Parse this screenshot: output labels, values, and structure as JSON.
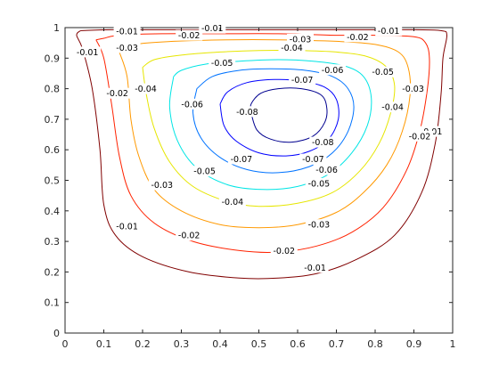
{
  "chart_data": {
    "type": "contour",
    "title": "",
    "xlabel": "",
    "ylabel": "",
    "xlim": [
      0,
      1
    ],
    "ylim": [
      0,
      1
    ],
    "grid": false,
    "x_ticks": [
      "0",
      "0.1",
      "0.2",
      "0.3",
      "0.4",
      "0.5",
      "0.6",
      "0.7",
      "0.8",
      "0.9",
      "1"
    ],
    "y_ticks": [
      "0",
      "0.1",
      "0.2",
      "0.3",
      "0.4",
      "0.5",
      "0.6",
      "0.7",
      "0.8",
      "0.9",
      "1"
    ],
    "levels": [
      {
        "value": -0.01,
        "color": "#800000",
        "curves": [
          [
            [
              0.04,
              0.99
            ],
            [
              0.03,
              0.975
            ],
            [
              0.045,
              0.93
            ],
            [
              0.07,
              0.8
            ],
            [
              0.09,
              0.6
            ],
            [
              0.1,
              0.42
            ],
            [
              0.13,
              0.32
            ],
            [
              0.2,
              0.25
            ],
            [
              0.32,
              0.2
            ],
            [
              0.45,
              0.18
            ],
            [
              0.55,
              0.18
            ],
            [
              0.65,
              0.195
            ],
            [
              0.75,
              0.24
            ],
            [
              0.85,
              0.32
            ],
            [
              0.92,
              0.46
            ],
            [
              0.955,
              0.62
            ],
            [
              0.97,
              0.78
            ],
            [
              0.975,
              0.9
            ],
            [
              0.985,
              0.975
            ],
            [
              0.97,
              0.99
            ],
            [
              0.9,
              0.993
            ],
            [
              0.7,
              0.993
            ],
            [
              0.5,
              0.993
            ],
            [
              0.3,
              0.993
            ],
            [
              0.12,
              0.993
            ],
            [
              0.04,
              0.99
            ]
          ]
        ],
        "labels": [
          {
            "text": "-0.01",
            "x": 0.058,
            "y": 0.92
          },
          {
            "text": "-0.01",
            "x": 0.16,
            "y": 0.988
          },
          {
            "text": "-0.01",
            "x": 0.38,
            "y": 0.998
          },
          {
            "text": "-0.01",
            "x": 0.835,
            "y": 0.99
          },
          {
            "text": "-0.01",
            "x": 0.945,
            "y": 0.66
          },
          {
            "text": "-0.01",
            "x": 0.16,
            "y": 0.35
          },
          {
            "text": "-0.01",
            "x": 0.645,
            "y": 0.215
          }
        ]
      },
      {
        "value": -0.02,
        "color": "#ff2200",
        "curves": [
          [
            [
              0.08,
              0.96
            ],
            [
              0.1,
              0.9
            ],
            [
              0.12,
              0.75
            ],
            [
              0.14,
              0.58
            ],
            [
              0.17,
              0.45
            ],
            [
              0.23,
              0.36
            ],
            [
              0.33,
              0.3
            ],
            [
              0.45,
              0.27
            ],
            [
              0.55,
              0.265
            ],
            [
              0.65,
              0.285
            ],
            [
              0.74,
              0.33
            ],
            [
              0.82,
              0.41
            ],
            [
              0.88,
              0.53
            ],
            [
              0.915,
              0.66
            ],
            [
              0.935,
              0.8
            ],
            [
              0.94,
              0.9
            ],
            [
              0.93,
              0.95
            ],
            [
              0.9,
              0.97
            ],
            [
              0.8,
              0.975
            ],
            [
              0.7,
              0.975
            ],
            [
              0.55,
              0.98
            ],
            [
              0.4,
              0.98
            ],
            [
              0.25,
              0.98
            ],
            [
              0.14,
              0.975
            ],
            [
              0.1,
              0.965
            ],
            [
              0.08,
              0.96
            ]
          ]
        ],
        "labels": [
          {
            "text": "-0.02",
            "x": 0.135,
            "y": 0.785
          },
          {
            "text": "-0.02",
            "x": 0.32,
            "y": 0.975
          },
          {
            "text": "-0.02",
            "x": 0.755,
            "y": 0.97
          },
          {
            "text": "-0.02",
            "x": 0.915,
            "y": 0.645
          },
          {
            "text": "-0.02",
            "x": 0.32,
            "y": 0.32
          },
          {
            "text": "-0.02",
            "x": 0.565,
            "y": 0.27
          }
        ]
      },
      {
        "value": -0.03,
        "color": "#ff9900",
        "curves": [
          [
            [
              0.14,
              0.92
            ],
            [
              0.16,
              0.84
            ],
            [
              0.17,
              0.7
            ],
            [
              0.19,
              0.58
            ],
            [
              0.23,
              0.47
            ],
            [
              0.3,
              0.4
            ],
            [
              0.4,
              0.355
            ],
            [
              0.5,
              0.345
            ],
            [
              0.6,
              0.355
            ],
            [
              0.7,
              0.395
            ],
            [
              0.77,
              0.46
            ],
            [
              0.83,
              0.55
            ],
            [
              0.87,
              0.66
            ],
            [
              0.89,
              0.78
            ],
            [
              0.885,
              0.87
            ],
            [
              0.86,
              0.92
            ],
            [
              0.8,
              0.945
            ],
            [
              0.7,
              0.955
            ],
            [
              0.55,
              0.96
            ],
            [
              0.42,
              0.96
            ],
            [
              0.28,
              0.955
            ],
            [
              0.18,
              0.945
            ],
            [
              0.14,
              0.92
            ]
          ]
        ],
        "labels": [
          {
            "text": "-0.03",
            "x": 0.16,
            "y": 0.935
          },
          {
            "text": "-0.03",
            "x": 0.607,
            "y": 0.962
          },
          {
            "text": "-0.03",
            "x": 0.898,
            "y": 0.8
          },
          {
            "text": "-0.03",
            "x": 0.25,
            "y": 0.485
          },
          {
            "text": "-0.03",
            "x": 0.655,
            "y": 0.355
          }
        ]
      },
      {
        "value": -0.04,
        "color": "#e6e600",
        "curves": [
          [
            [
              0.2,
              0.87
            ],
            [
              0.21,
              0.78
            ],
            [
              0.23,
              0.67
            ],
            [
              0.27,
              0.56
            ],
            [
              0.33,
              0.48
            ],
            [
              0.42,
              0.43
            ],
            [
              0.5,
              0.415
            ],
            [
              0.6,
              0.425
            ],
            [
              0.69,
              0.46
            ],
            [
              0.76,
              0.53
            ],
            [
              0.81,
              0.62
            ],
            [
              0.84,
              0.72
            ],
            [
              0.85,
              0.81
            ],
            [
              0.83,
              0.87
            ],
            [
              0.78,
              0.905
            ],
            [
              0.7,
              0.92
            ],
            [
              0.6,
              0.925
            ],
            [
              0.5,
              0.925
            ],
            [
              0.4,
              0.92
            ],
            [
              0.3,
              0.91
            ],
            [
              0.23,
              0.895
            ],
            [
              0.2,
              0.87
            ]
          ]
        ],
        "labels": [
          {
            "text": "-0.04",
            "x": 0.208,
            "y": 0.8
          },
          {
            "text": "-0.04",
            "x": 0.585,
            "y": 0.935
          },
          {
            "text": "-0.04",
            "x": 0.845,
            "y": 0.74
          },
          {
            "text": "-0.04",
            "x": 0.432,
            "y": 0.43
          }
        ]
      },
      {
        "value": -0.05,
        "color": "#00e5e5",
        "curves": [
          [
            [
              0.28,
              0.84
            ],
            [
              0.27,
              0.74
            ],
            [
              0.29,
              0.63
            ],
            [
              0.34,
              0.54
            ],
            [
              0.42,
              0.485
            ],
            [
              0.51,
              0.47
            ],
            [
              0.6,
              0.48
            ],
            [
              0.68,
              0.52
            ],
            [
              0.74,
              0.59
            ],
            [
              0.78,
              0.68
            ],
            [
              0.79,
              0.77
            ],
            [
              0.77,
              0.84
            ],
            [
              0.72,
              0.875
            ],
            [
              0.64,
              0.89
            ],
            [
              0.55,
              0.895
            ],
            [
              0.45,
              0.89
            ],
            [
              0.36,
              0.88
            ],
            [
              0.3,
              0.86
            ],
            [
              0.28,
              0.84
            ]
          ]
        ],
        "labels": [
          {
            "text": "-0.05",
            "x": 0.405,
            "y": 0.885
          },
          {
            "text": "-0.05",
            "x": 0.82,
            "y": 0.855
          },
          {
            "text": "-0.05",
            "x": 0.36,
            "y": 0.53
          },
          {
            "text": "-0.05",
            "x": 0.655,
            "y": 0.49
          }
        ]
      },
      {
        "value": -0.06,
        "color": "#0073ff",
        "curves": [
          [
            [
              0.34,
              0.8
            ],
            [
              0.33,
              0.72
            ],
            [
              0.35,
              0.64
            ],
            [
              0.4,
              0.575
            ],
            [
              0.47,
              0.535
            ],
            [
              0.55,
              0.525
            ],
            [
              0.63,
              0.545
            ],
            [
              0.69,
              0.59
            ],
            [
              0.73,
              0.66
            ],
            [
              0.745,
              0.74
            ],
            [
              0.73,
              0.8
            ],
            [
              0.69,
              0.84
            ],
            [
              0.62,
              0.86
            ],
            [
              0.53,
              0.865
            ],
            [
              0.45,
              0.86
            ],
            [
              0.38,
              0.84
            ],
            [
              0.34,
              0.8
            ]
          ]
        ],
        "labels": [
          {
            "text": "-0.06",
            "x": 0.328,
            "y": 0.75
          },
          {
            "text": "-0.06",
            "x": 0.69,
            "y": 0.862
          },
          {
            "text": "-0.06",
            "x": 0.675,
            "y": 0.535
          }
        ]
      },
      {
        "value": -0.07,
        "color": "#0000ff",
        "curves": [
          [
            [
              0.4,
              0.75
            ],
            [
              0.41,
              0.68
            ],
            [
              0.44,
              0.63
            ],
            [
              0.5,
              0.59
            ],
            [
              0.57,
              0.58
            ],
            [
              0.63,
              0.595
            ],
            [
              0.68,
              0.635
            ],
            [
              0.705,
              0.7
            ],
            [
              0.7,
              0.765
            ],
            [
              0.67,
              0.805
            ],
            [
              0.61,
              0.825
            ],
            [
              0.54,
              0.83
            ],
            [
              0.47,
              0.82
            ],
            [
              0.42,
              0.79
            ],
            [
              0.4,
              0.75
            ]
          ]
        ],
        "labels": [
          {
            "text": "-0.07",
            "x": 0.612,
            "y": 0.83
          },
          {
            "text": "-0.07",
            "x": 0.455,
            "y": 0.57
          },
          {
            "text": "-0.07",
            "x": 0.64,
            "y": 0.57
          }
        ]
      },
      {
        "value": -0.08,
        "color": "#00008f",
        "curves": [
          [
            [
              0.48,
              0.72
            ],
            [
              0.495,
              0.665
            ],
            [
              0.53,
              0.635
            ],
            [
              0.585,
              0.625
            ],
            [
              0.64,
              0.645
            ],
            [
              0.67,
              0.69
            ],
            [
              0.675,
              0.74
            ],
            [
              0.66,
              0.78
            ],
            [
              0.61,
              0.8
            ],
            [
              0.55,
              0.8
            ],
            [
              0.505,
              0.785
            ],
            [
              0.48,
              0.75
            ],
            [
              0.48,
              0.72
            ]
          ]
        ],
        "labels": [
          {
            "text": "-0.08",
            "x": 0.47,
            "y": 0.725
          },
          {
            "text": "-0.08",
            "x": 0.665,
            "y": 0.625
          }
        ]
      }
    ]
  }
}
